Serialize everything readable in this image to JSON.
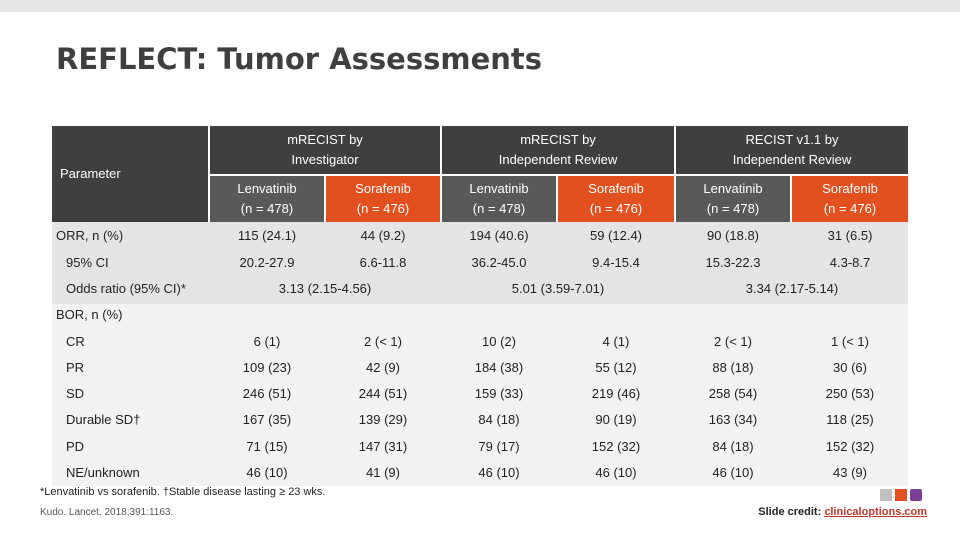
{
  "slide": {
    "title": "REFLECT: Tumor Assessments"
  },
  "table": {
    "param_header": "Parameter",
    "groups": [
      {
        "line1": "mRECIST by",
        "line2": "Investigator"
      },
      {
        "line1": "mRECIST by",
        "line2": "Independent Review"
      },
      {
        "line1": "RECIST v1.1 by",
        "line2": "Independent Review"
      }
    ],
    "arms": [
      {
        "name": "Lenvatinib",
        "n": "(n = 478)"
      },
      {
        "name": "Sorafenib",
        "n": "(n = 476)"
      }
    ],
    "rows": {
      "orr": {
        "label": "ORR, n (%)",
        "values": [
          "115 (24.1)",
          "44 (9.2)",
          "194 (40.6)",
          "59 (12.4)",
          "90 (18.8)",
          "31 (6.5)"
        ]
      },
      "ci": {
        "label": "95% CI",
        "values": [
          "20.2-27.9",
          "6.6-11.8",
          "36.2-45.0",
          "9.4-15.4",
          "15.3-22.3",
          "4.3-8.7"
        ]
      },
      "odds": {
        "label": "Odds ratio (95% CI)*",
        "values": [
          "3.13 (2.15-4.56)",
          "5.01 (3.59-7.01)",
          "3.34 (2.17-5.14)"
        ]
      },
      "bor": {
        "label": "BOR, n (%)"
      },
      "cr": {
        "label": "CR",
        "values": [
          "6 (1)",
          "2 (< 1)",
          "10 (2)",
          "4 (1)",
          "2 (< 1)",
          "1 (< 1)"
        ]
      },
      "pr": {
        "label": "PR",
        "values": [
          "109 (23)",
          "42 (9)",
          "184 (38)",
          "55 (12)",
          "88 (18)",
          "30 (6)"
        ]
      },
      "sd": {
        "label": "SD",
        "values": [
          "246 (51)",
          "244 (51)",
          "159 (33)",
          "219 (46)",
          "258 (54)",
          "250 (53)"
        ]
      },
      "dsd": {
        "label": "Durable SD†",
        "values": [
          "167 (35)",
          "139 (29)",
          "84 (18)",
          "90 (19)",
          "163 (34)",
          "118 (25)"
        ]
      },
      "pd": {
        "label": "PD",
        "values": [
          "71 (15)",
          "147 (31)",
          "79 (17)",
          "152 (32)",
          "84 (18)",
          "152 (32)"
        ]
      },
      "ne": {
        "label": "NE/unknown",
        "values": [
          "46 (10)",
          "41 (9)",
          "46 (10)",
          "46 (10)",
          "46 (10)",
          "43 (9)"
        ]
      }
    }
  },
  "footnote": "*Lenvatinib vs sorafenib. †Stable disease lasting ≥ 23 wks.",
  "citation": "Kudo. Lancet. 2018;391:1163.",
  "credit": {
    "label": "Slide credit: ",
    "link": "clinicaloptions.com"
  },
  "colors": {
    "dark_header": "#3f3f3f",
    "grey_header": "#595959",
    "orange_header": "#e1501e"
  }
}
